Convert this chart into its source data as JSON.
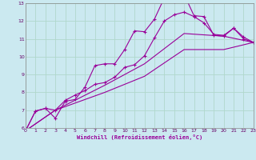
{
  "bg_color": "#cbe9f0",
  "grid_color": "#b0d8cc",
  "line_color": "#990099",
  "xlabel": "Windchill (Refroidissement éolien,°C)",
  "xlim": [
    0,
    23
  ],
  "ylim": [
    6,
    13
  ],
  "xticks": [
    0,
    1,
    2,
    3,
    4,
    5,
    6,
    7,
    8,
    9,
    10,
    11,
    12,
    13,
    14,
    15,
    16,
    17,
    18,
    19,
    20,
    21,
    22,
    23
  ],
  "yticks": [
    6,
    7,
    8,
    9,
    10,
    11,
    12,
    13
  ],
  "line1_x": [
    0,
    1,
    2,
    3,
    4,
    5,
    6,
    7,
    8,
    9,
    10,
    11,
    12,
    13,
    14,
    15,
    16,
    17,
    18,
    19,
    20,
    21,
    22,
    23
  ],
  "line1_y": [
    5.85,
    6.95,
    7.1,
    6.55,
    7.5,
    7.6,
    8.3,
    9.5,
    9.6,
    9.6,
    10.4,
    11.45,
    11.4,
    12.1,
    13.3,
    13.1,
    13.5,
    12.3,
    12.25,
    11.2,
    11.15,
    11.6,
    11.0,
    10.8
  ],
  "line2_x": [
    0,
    1,
    2,
    3,
    4,
    5,
    6,
    7,
    8,
    9,
    10,
    11,
    12,
    13,
    14,
    15,
    16,
    17,
    18,
    19,
    20,
    21,
    22,
    23
  ],
  "line2_y": [
    5.85,
    6.95,
    7.1,
    7.0,
    7.55,
    7.85,
    8.1,
    8.45,
    8.55,
    8.85,
    9.4,
    9.55,
    10.05,
    11.05,
    12.0,
    12.35,
    12.5,
    12.25,
    11.9,
    11.25,
    11.2,
    11.6,
    11.1,
    10.8
  ],
  "line3_x": [
    0,
    3,
    8,
    12,
    16,
    20,
    23
  ],
  "line3_y": [
    5.85,
    7.0,
    8.4,
    9.6,
    11.3,
    11.15,
    10.8
  ],
  "line4_x": [
    0,
    3,
    8,
    12,
    16,
    20,
    23
  ],
  "line4_y": [
    5.85,
    7.0,
    8.0,
    8.9,
    10.4,
    10.4,
    10.8
  ]
}
